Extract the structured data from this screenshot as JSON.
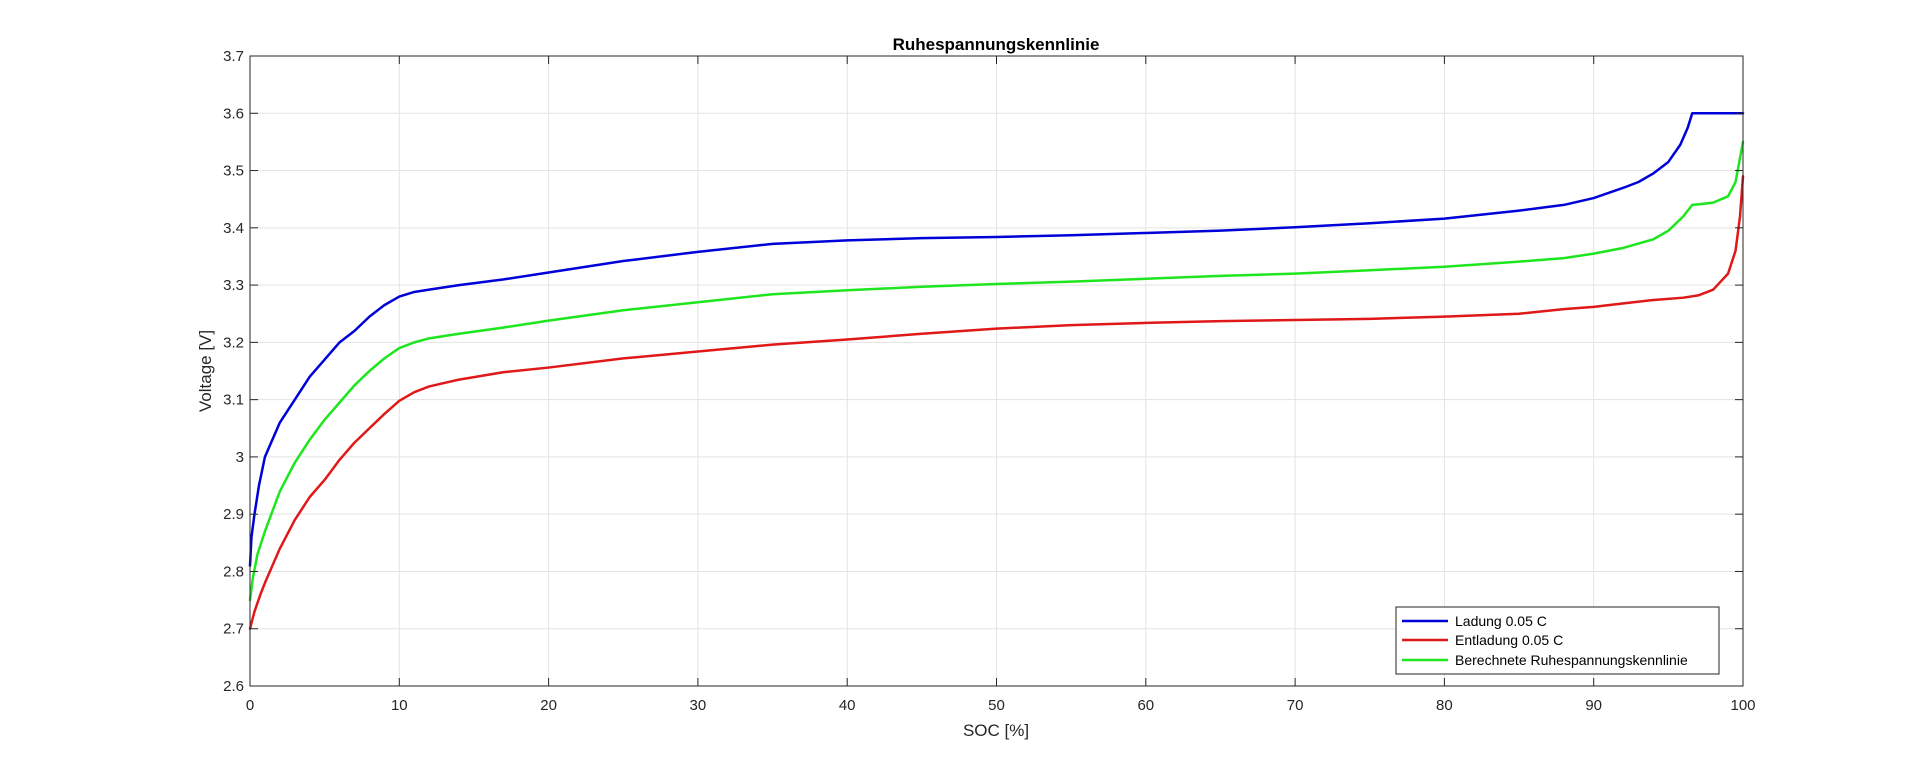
{
  "chart_data": {
    "type": "line",
    "title": "Ruhespannungskennlinie",
    "xlabel": "SOC [%]",
    "ylabel": "Voltage [V]",
    "xlim": [
      0,
      100
    ],
    "ylim": [
      2.6,
      3.7
    ],
    "xticks": [
      0,
      10,
      20,
      30,
      40,
      50,
      60,
      70,
      80,
      90,
      100
    ],
    "xtick_labels": [
      "0",
      "10",
      "20",
      "30",
      "40",
      "50",
      "60",
      "70",
      "80",
      "90",
      "100"
    ],
    "yticks": [
      2.6,
      2.7,
      2.8,
      2.9,
      3.0,
      3.1,
      3.2,
      3.3,
      3.4,
      3.5,
      3.6,
      3.7
    ],
    "ytick_labels": [
      "2.6",
      "2.7",
      "2.8",
      "2.9",
      "3",
      "3.1",
      "3.2",
      "3.3",
      "3.4",
      "3.5",
      "3.6",
      "3.7"
    ],
    "grid": true,
    "legend_position": "bottom-right",
    "series": [
      {
        "name": "Ladung 0.05 C",
        "color": "#0000d8",
        "x": [
          0,
          0.1,
          0.3,
          0.6,
          1,
          2,
          3,
          4,
          5,
          6,
          7,
          8,
          9,
          10,
          11,
          12,
          14,
          17,
          20,
          25,
          30,
          35,
          40,
          45,
          50,
          55,
          60,
          65,
          70,
          75,
          80,
          85,
          88,
          90,
          92,
          93,
          94,
          95,
          95.8,
          96.3,
          96.6,
          97,
          100
        ],
        "y": [
          2.81,
          2.86,
          2.9,
          2.95,
          3.0,
          3.06,
          3.1,
          3.14,
          3.17,
          3.2,
          3.22,
          3.245,
          3.265,
          3.28,
          3.288,
          3.292,
          3.3,
          3.31,
          3.322,
          3.342,
          3.358,
          3.372,
          3.378,
          3.382,
          3.384,
          3.387,
          3.391,
          3.395,
          3.401,
          3.408,
          3.416,
          3.43,
          3.44,
          3.452,
          3.47,
          3.48,
          3.495,
          3.515,
          3.545,
          3.575,
          3.6,
          3.6,
          3.6
        ]
      },
      {
        "name": "Entladung 0.05 C",
        "color": "#e01818",
        "x": [
          0,
          0.3,
          0.7,
          1,
          2,
          3,
          4,
          5,
          6,
          7,
          8,
          9,
          10,
          11,
          12,
          14,
          17,
          20,
          25,
          30,
          35,
          40,
          45,
          50,
          55,
          60,
          65,
          70,
          75,
          80,
          85,
          88,
          90,
          92,
          94,
          96,
          97,
          98,
          99,
          99.5,
          99.8,
          100
        ],
        "y": [
          2.7,
          2.73,
          2.76,
          2.78,
          2.84,
          2.89,
          2.93,
          2.96,
          2.995,
          3.025,
          3.05,
          3.075,
          3.098,
          3.113,
          3.123,
          3.135,
          3.148,
          3.156,
          3.172,
          3.184,
          3.196,
          3.205,
          3.215,
          3.224,
          3.23,
          3.234,
          3.237,
          3.239,
          3.241,
          3.245,
          3.25,
          3.258,
          3.262,
          3.268,
          3.274,
          3.278,
          3.282,
          3.292,
          3.32,
          3.36,
          3.42,
          3.49
        ]
      },
      {
        "name": "Berechnete Ruhespannungskennlinie",
        "color": "#1ee61e",
        "x": [
          0,
          0.2,
          0.5,
          1,
          2,
          3,
          4,
          5,
          6,
          7,
          8,
          9,
          10,
          11,
          12,
          14,
          17,
          20,
          25,
          30,
          35,
          40,
          45,
          50,
          55,
          60,
          65,
          70,
          75,
          80,
          85,
          88,
          90,
          92,
          94,
          95,
          96,
          96.6,
          97,
          98,
          99,
          99.5,
          100
        ],
        "y": [
          2.75,
          2.79,
          2.83,
          2.87,
          2.94,
          2.99,
          3.03,
          3.065,
          3.095,
          3.125,
          3.15,
          3.172,
          3.19,
          3.2,
          3.207,
          3.215,
          3.226,
          3.238,
          3.256,
          3.27,
          3.284,
          3.291,
          3.297,
          3.302,
          3.306,
          3.311,
          3.316,
          3.32,
          3.326,
          3.332,
          3.341,
          3.347,
          3.355,
          3.365,
          3.38,
          3.395,
          3.42,
          3.44,
          3.441,
          3.444,
          3.455,
          3.48,
          3.55
        ]
      }
    ]
  }
}
